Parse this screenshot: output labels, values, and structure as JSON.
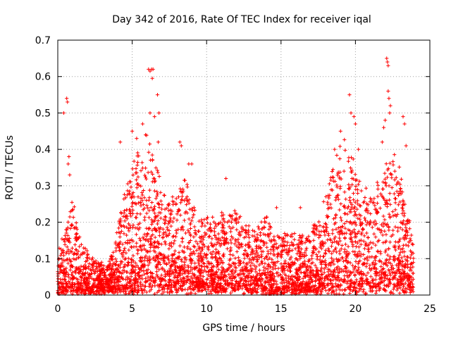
{
  "chart_data": {
    "type": "scatter",
    "title": "Day 342 of 2016, Rate Of TEC Index for receiver iqal",
    "xlabel": "GPS time / hours",
    "ylabel": "ROTI / TECUs",
    "xlim": [
      0,
      25
    ],
    "ylim": [
      0,
      0.7
    ],
    "x_ticks": [
      0,
      5,
      10,
      15,
      20,
      25
    ],
    "x_tick_labels": [
      "0",
      "5",
      "10",
      "15",
      "20",
      "25"
    ],
    "y_ticks": [
      0,
      0.1,
      0.2,
      0.3,
      0.4,
      0.5,
      0.6,
      0.7
    ],
    "y_tick_labels": [
      "0",
      "0.1",
      "0.2",
      "0.3",
      "0.4",
      "0.5",
      "0.6",
      "0.7"
    ],
    "grid": true,
    "marker": "+",
    "color": "#ff0000",
    "envelope": {
      "x": [
        0,
        0.5,
        1,
        1.5,
        2,
        2.5,
        3,
        3.5,
        4,
        4.5,
        5,
        5.5,
        6,
        6.5,
        7,
        7.5,
        8,
        8.5,
        9,
        9.5,
        10,
        10.5,
        11,
        11.5,
        12,
        12.5,
        13,
        13.5,
        14,
        14.5,
        15,
        15.5,
        16,
        16.5,
        17,
        17.5,
        18,
        18.5,
        19,
        19.5,
        20,
        20.5,
        21,
        21.5,
        22,
        22.5,
        23,
        23.5,
        23.9
      ],
      "typical_max": [
        0.12,
        0.18,
        0.26,
        0.15,
        0.12,
        0.1,
        0.08,
        0.09,
        0.18,
        0.28,
        0.35,
        0.4,
        0.42,
        0.36,
        0.3,
        0.28,
        0.26,
        0.34,
        0.24,
        0.2,
        0.22,
        0.2,
        0.22,
        0.21,
        0.24,
        0.2,
        0.18,
        0.2,
        0.22,
        0.18,
        0.16,
        0.18,
        0.17,
        0.16,
        0.18,
        0.2,
        0.28,
        0.36,
        0.42,
        0.4,
        0.34,
        0.3,
        0.26,
        0.32,
        0.36,
        0.38,
        0.34,
        0.25,
        0.12
      ],
      "typical_min": [
        0.01,
        0.02,
        0.02,
        0.02,
        0.02,
        0.02,
        0.02,
        0.02,
        0.02,
        0.02,
        0.03,
        0.04,
        0.05,
        0.04,
        0.04,
        0.04,
        0.04,
        0.04,
        0.04,
        0.03,
        0.03,
        0.03,
        0.03,
        0.03,
        0.03,
        0.03,
        0.03,
        0.03,
        0.02,
        0.02,
        0.02,
        0.02,
        0.02,
        0.02,
        0.02,
        0.02,
        0.03,
        0.03,
        0.04,
        0.04,
        0.03,
        0.03,
        0.03,
        0.04,
        0.05,
        0.05,
        0.04,
        0.03,
        0.02
      ]
    },
    "outliers": [
      {
        "x": 0.4,
        "y": 0.5
      },
      {
        "x": 0.6,
        "y": 0.54
      },
      {
        "x": 0.65,
        "y": 0.53
      },
      {
        "x": 0.7,
        "y": 0.36
      },
      {
        "x": 0.75,
        "y": 0.38
      },
      {
        "x": 0.8,
        "y": 0.33
      },
      {
        "x": 4.2,
        "y": 0.42
      },
      {
        "x": 5.0,
        "y": 0.45
      },
      {
        "x": 5.3,
        "y": 0.43
      },
      {
        "x": 5.7,
        "y": 0.47
      },
      {
        "x": 5.9,
        "y": 0.44
      },
      {
        "x": 6.1,
        "y": 0.62
      },
      {
        "x": 6.2,
        "y": 0.615
      },
      {
        "x": 6.3,
        "y": 0.62
      },
      {
        "x": 6.35,
        "y": 0.595
      },
      {
        "x": 6.4,
        "y": 0.62
      },
      {
        "x": 6.2,
        "y": 0.5
      },
      {
        "x": 6.5,
        "y": 0.49
      },
      {
        "x": 6.7,
        "y": 0.55
      },
      {
        "x": 6.8,
        "y": 0.5
      },
      {
        "x": 6.75,
        "y": 0.42
      },
      {
        "x": 8.2,
        "y": 0.42
      },
      {
        "x": 8.3,
        "y": 0.41
      },
      {
        "x": 8.8,
        "y": 0.36
      },
      {
        "x": 9.0,
        "y": 0.36
      },
      {
        "x": 11.3,
        "y": 0.32
      },
      {
        "x": 14.7,
        "y": 0.24
      },
      {
        "x": 16.3,
        "y": 0.24
      },
      {
        "x": 18.6,
        "y": 0.4
      },
      {
        "x": 19.0,
        "y": 0.45
      },
      {
        "x": 19.6,
        "y": 0.55
      },
      {
        "x": 19.7,
        "y": 0.5
      },
      {
        "x": 19.9,
        "y": 0.49
      },
      {
        "x": 20.0,
        "y": 0.47
      },
      {
        "x": 20.2,
        "y": 0.4
      },
      {
        "x": 21.8,
        "y": 0.42
      },
      {
        "x": 21.9,
        "y": 0.46
      },
      {
        "x": 22.0,
        "y": 0.48
      },
      {
        "x": 22.1,
        "y": 0.65
      },
      {
        "x": 22.15,
        "y": 0.64
      },
      {
        "x": 22.2,
        "y": 0.63
      },
      {
        "x": 22.2,
        "y": 0.56
      },
      {
        "x": 22.25,
        "y": 0.54
      },
      {
        "x": 22.3,
        "y": 0.5
      },
      {
        "x": 22.35,
        "y": 0.52
      },
      {
        "x": 23.2,
        "y": 0.49
      },
      {
        "x": 23.3,
        "y": 0.47
      },
      {
        "x": 23.4,
        "y": 0.41
      }
    ]
  }
}
